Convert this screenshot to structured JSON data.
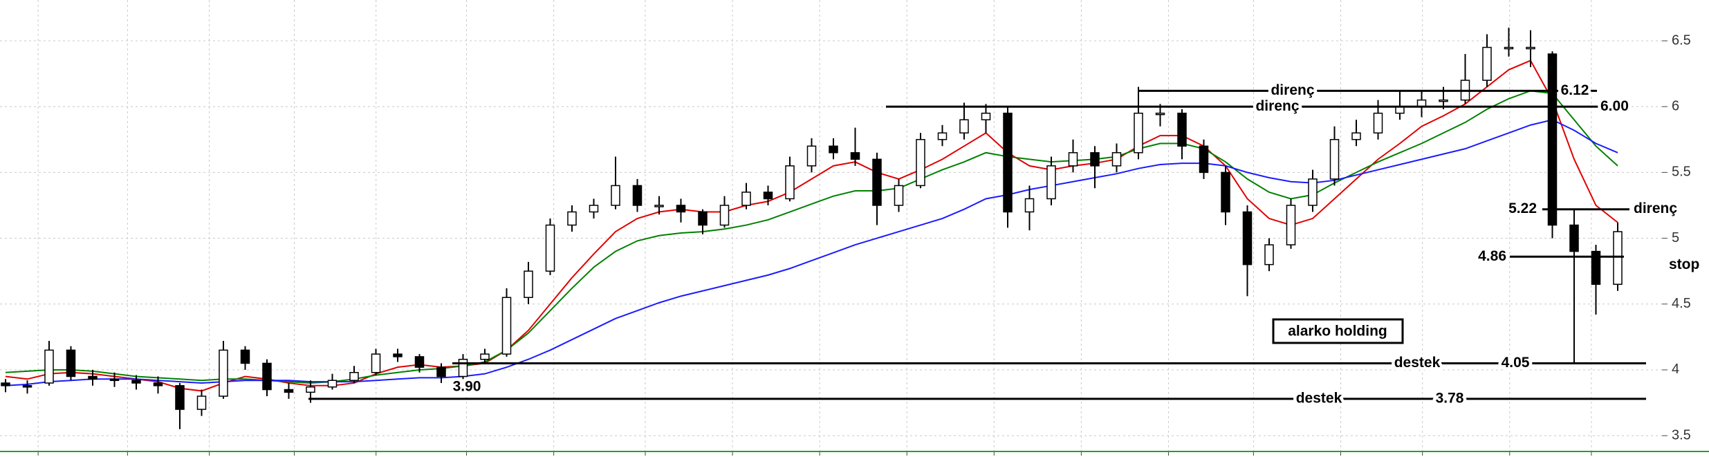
{
  "chart_data": {
    "type": "candlestick",
    "ylim": [
      3.38,
      6.81
    ],
    "yticks": [
      3.5,
      4,
      4.5,
      5,
      5.5,
      6,
      6.5
    ],
    "grid": true,
    "up_color": "#ffffff",
    "down_color": "#000000",
    "ohlc": [
      [
        3.9,
        3.93,
        3.83,
        3.88
      ],
      [
        3.88,
        3.92,
        3.82,
        3.87
      ],
      [
        3.9,
        4.22,
        3.88,
        4.15
      ],
      [
        4.15,
        4.18,
        3.92,
        3.95
      ],
      [
        3.95,
        4.0,
        3.88,
        3.93
      ],
      [
        3.93,
        3.98,
        3.87,
        3.92
      ],
      [
        3.92,
        3.96,
        3.85,
        3.9
      ],
      [
        3.9,
        3.95,
        3.82,
        3.88
      ],
      [
        3.88,
        3.9,
        3.55,
        3.7
      ],
      [
        3.7,
        3.85,
        3.65,
        3.8
      ],
      [
        3.8,
        4.22,
        3.78,
        4.15
      ],
      [
        4.15,
        4.18,
        4.0,
        4.05
      ],
      [
        4.05,
        4.08,
        3.8,
        3.85
      ],
      [
        3.85,
        3.9,
        3.78,
        3.83
      ],
      [
        3.83,
        3.92,
        3.75,
        3.87
      ],
      [
        3.87,
        3.97,
        3.85,
        3.92
      ],
      [
        3.92,
        4.03,
        3.9,
        3.98
      ],
      [
        3.98,
        4.16,
        3.96,
        4.12
      ],
      [
        4.12,
        4.16,
        4.06,
        4.1
      ],
      [
        4.1,
        4.12,
        3.98,
        4.02
      ],
      [
        4.02,
        4.05,
        3.9,
        3.95
      ],
      [
        3.95,
        4.12,
        3.93,
        4.08
      ],
      [
        4.08,
        4.16,
        4.05,
        4.12
      ],
      [
        4.12,
        4.62,
        4.1,
        4.55
      ],
      [
        4.55,
        4.82,
        4.5,
        4.75
      ],
      [
        4.75,
        5.15,
        4.72,
        5.1
      ],
      [
        5.1,
        5.25,
        5.05,
        5.2
      ],
      [
        5.2,
        5.3,
        5.15,
        5.25
      ],
      [
        5.25,
        5.62,
        5.22,
        5.4
      ],
      [
        5.4,
        5.45,
        5.2,
        5.25
      ],
      [
        5.25,
        5.32,
        5.18,
        5.25
      ],
      [
        5.25,
        5.3,
        5.12,
        5.2
      ],
      [
        5.2,
        5.22,
        5.03,
        5.1
      ],
      [
        5.1,
        5.32,
        5.08,
        5.25
      ],
      [
        5.25,
        5.42,
        5.22,
        5.35
      ],
      [
        5.35,
        5.4,
        5.25,
        5.3
      ],
      [
        5.3,
        5.62,
        5.28,
        5.55
      ],
      [
        5.55,
        5.76,
        5.5,
        5.7
      ],
      [
        5.7,
        5.76,
        5.6,
        5.65
      ],
      [
        5.65,
        5.84,
        5.55,
        5.6
      ],
      [
        5.6,
        5.65,
        5.1,
        5.25
      ],
      [
        5.25,
        5.45,
        5.2,
        5.4
      ],
      [
        5.4,
        5.8,
        5.38,
        5.75
      ],
      [
        5.75,
        5.86,
        5.7,
        5.8
      ],
      [
        5.8,
        6.03,
        5.75,
        5.9
      ],
      [
        5.9,
        6.02,
        5.8,
        5.95
      ],
      [
        5.95,
        6.0,
        5.08,
        5.2
      ],
      [
        5.2,
        5.4,
        5.06,
        5.3
      ],
      [
        5.3,
        5.62,
        5.25,
        5.55
      ],
      [
        5.55,
        5.75,
        5.5,
        5.65
      ],
      [
        5.65,
        5.7,
        5.38,
        5.55
      ],
      [
        5.55,
        5.72,
        5.5,
        5.65
      ],
      [
        5.65,
        6.15,
        5.6,
        5.95
      ],
      [
        5.95,
        6.02,
        5.85,
        5.95
      ],
      [
        5.95,
        5.98,
        5.6,
        5.7
      ],
      [
        5.7,
        5.75,
        5.45,
        5.5
      ],
      [
        5.5,
        5.55,
        5.1,
        5.2
      ],
      [
        5.2,
        5.25,
        4.56,
        4.8
      ],
      [
        4.8,
        5.0,
        4.75,
        4.95
      ],
      [
        4.95,
        5.3,
        4.92,
        5.25
      ],
      [
        5.25,
        5.52,
        5.2,
        5.45
      ],
      [
        5.45,
        5.85,
        5.4,
        5.75
      ],
      [
        5.75,
        5.9,
        5.7,
        5.8
      ],
      [
        5.8,
        6.05,
        5.75,
        5.95
      ],
      [
        5.95,
        6.12,
        5.9,
        6.0
      ],
      [
        6.0,
        6.12,
        5.92,
        6.05
      ],
      [
        6.05,
        6.15,
        5.98,
        6.05
      ],
      [
        6.05,
        6.4,
        6.02,
        6.2
      ],
      [
        6.2,
        6.55,
        6.15,
        6.45
      ],
      [
        6.45,
        6.6,
        6.38,
        6.45
      ],
      [
        6.45,
        6.58,
        6.3,
        6.45
      ],
      [
        6.4,
        6.42,
        5.0,
        5.1
      ],
      [
        5.1,
        5.22,
        4.05,
        4.9
      ],
      [
        4.9,
        4.95,
        4.42,
        4.65
      ],
      [
        4.65,
        5.12,
        4.6,
        5.05
      ]
    ],
    "series": [
      {
        "color": "#e00000",
        "values": [
          3.95,
          3.93,
          3.97,
          3.98,
          3.97,
          3.95,
          3.93,
          3.91,
          3.86,
          3.84,
          3.9,
          3.95,
          3.93,
          3.9,
          3.88,
          3.88,
          3.9,
          3.97,
          4.02,
          4.04,
          4.02,
          4.03,
          4.05,
          4.15,
          4.3,
          4.5,
          4.7,
          4.88,
          5.05,
          5.15,
          5.2,
          5.22,
          5.2,
          5.2,
          5.25,
          5.28,
          5.35,
          5.45,
          5.55,
          5.58,
          5.5,
          5.45,
          5.52,
          5.6,
          5.7,
          5.8,
          5.65,
          5.55,
          5.52,
          5.55,
          5.57,
          5.6,
          5.7,
          5.78,
          5.78,
          5.7,
          5.55,
          5.3,
          5.15,
          5.1,
          5.15,
          5.3,
          5.45,
          5.6,
          5.72,
          5.85,
          5.93,
          6.02,
          6.15,
          6.28,
          6.35,
          6.05,
          5.6,
          5.25,
          5.12
        ]
      },
      {
        "color": "#008000",
        "values": [
          3.98,
          3.99,
          4.0,
          4.0,
          3.99,
          3.97,
          3.95,
          3.94,
          3.93,
          3.92,
          3.93,
          3.93,
          3.92,
          3.91,
          3.9,
          3.91,
          3.93,
          3.96,
          3.98,
          4.0,
          4.01,
          4.03,
          4.06,
          4.15,
          4.28,
          4.45,
          4.62,
          4.78,
          4.9,
          4.98,
          5.02,
          5.04,
          5.05,
          5.07,
          5.1,
          5.14,
          5.2,
          5.26,
          5.32,
          5.36,
          5.36,
          5.38,
          5.45,
          5.52,
          5.58,
          5.65,
          5.62,
          5.6,
          5.58,
          5.59,
          5.6,
          5.62,
          5.68,
          5.72,
          5.72,
          5.68,
          5.58,
          5.45,
          5.35,
          5.3,
          5.33,
          5.42,
          5.5,
          5.58,
          5.65,
          5.72,
          5.8,
          5.88,
          5.98,
          6.06,
          6.12,
          6.1,
          5.9,
          5.7,
          5.55
        ]
      },
      {
        "color": "#1a1aff",
        "values": [
          3.88,
          3.89,
          3.91,
          3.92,
          3.93,
          3.93,
          3.93,
          3.92,
          3.91,
          3.9,
          3.91,
          3.92,
          3.92,
          3.92,
          3.91,
          3.91,
          3.91,
          3.92,
          3.93,
          3.94,
          3.94,
          3.95,
          3.97,
          4.02,
          4.08,
          4.15,
          4.23,
          4.31,
          4.39,
          4.45,
          4.51,
          4.56,
          4.6,
          4.64,
          4.68,
          4.72,
          4.77,
          4.83,
          4.89,
          4.95,
          5.0,
          5.05,
          5.1,
          5.15,
          5.22,
          5.3,
          5.33,
          5.37,
          5.4,
          5.43,
          5.46,
          5.49,
          5.53,
          5.56,
          5.57,
          5.57,
          5.55,
          5.5,
          5.46,
          5.43,
          5.42,
          5.44,
          5.48,
          5.52,
          5.56,
          5.6,
          5.64,
          5.68,
          5.74,
          5.8,
          5.86,
          5.9,
          5.82,
          5.72,
          5.65
        ]
      }
    ],
    "levels": [
      {
        "label": "direnç",
        "price": 6.12
      },
      {
        "label": "direnç",
        "price": {
          "value": 6,
          "label": "6.00"
        }
      },
      {
        "label": "direnç",
        "price": 5.22
      },
      {
        "label": "stop",
        "price": 4.86
      },
      {
        "label": "destek",
        "price": 4.05
      },
      {
        "label": "destek",
        "price": 3.78
      }
    ],
    "price_note": {
      "value": 3.9,
      "label": "3.90"
    },
    "annotation": "alarko holding"
  }
}
